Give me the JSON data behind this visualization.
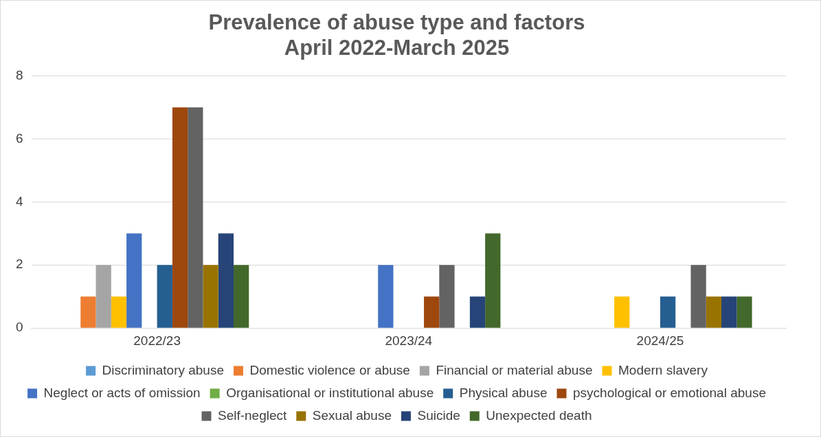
{
  "chart_data": {
    "type": "bar",
    "title": "Prevalence of abuse type and factors\nApril 2022-March 2025",
    "categories": [
      "2022/23",
      "2023/24",
      "2024/25"
    ],
    "series": [
      {
        "name": "Discriminatory abuse",
        "color": "#5b9bd5",
        "values": [
          0,
          0,
          0
        ]
      },
      {
        "name": "Domestic violence or abuse",
        "color": "#ed7d31",
        "values": [
          1,
          0,
          0
        ]
      },
      {
        "name": "Financial or material abuse",
        "color": "#a5a5a5",
        "values": [
          2,
          0,
          0
        ]
      },
      {
        "name": "Modern slavery",
        "color": "#ffc000",
        "values": [
          1,
          0,
          1
        ]
      },
      {
        "name": "Neglect or acts of omission",
        "color": "#4472c4",
        "values": [
          3,
          2,
          0
        ]
      },
      {
        "name": "Organisational or institutional abuse",
        "color": "#70ad47",
        "values": [
          0,
          0,
          0
        ]
      },
      {
        "name": "Physical abuse",
        "color": "#255e91",
        "values": [
          2,
          0,
          1
        ]
      },
      {
        "name": "psychological or emotional abuse",
        "color": "#9e480e",
        "values": [
          7,
          1,
          0
        ]
      },
      {
        "name": "Self-neglect",
        "color": "#636363",
        "values": [
          7,
          2,
          2
        ]
      },
      {
        "name": "Sexual abuse",
        "color": "#997300",
        "values": [
          2,
          0,
          1
        ]
      },
      {
        "name": "Suicide",
        "color": "#264478",
        "values": [
          3,
          1,
          1
        ]
      },
      {
        "name": "Unexpected death",
        "color": "#43682b",
        "values": [
          2,
          3,
          1
        ]
      }
    ],
    "ylim": [
      0,
      8
    ],
    "yticks": [
      0,
      2,
      4,
      6,
      8
    ],
    "grid": "y",
    "legend": "bottom"
  }
}
